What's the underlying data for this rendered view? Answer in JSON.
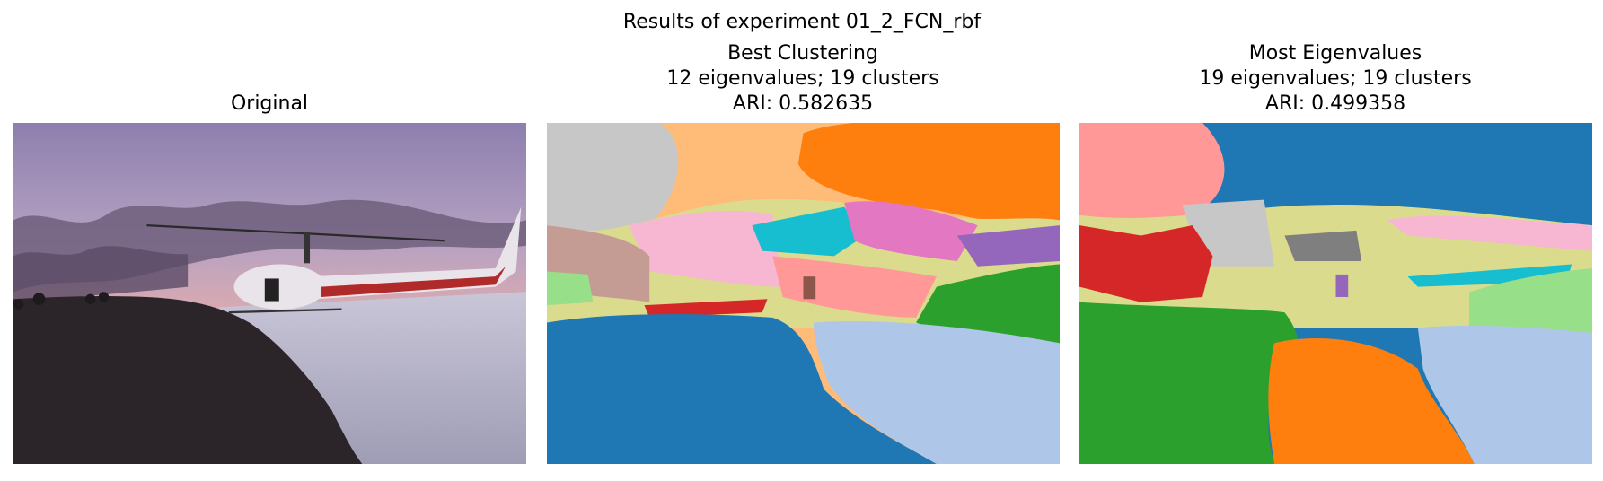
{
  "title": "Results of experiment 01_2_FCN_rbf",
  "panels": [
    {
      "title_lines": [
        "Original"
      ]
    },
    {
      "title_lines": [
        "Best Clustering",
        "12 eigenvalues; 19 clusters",
        "ARI: 0.582635"
      ]
    },
    {
      "title_lines": [
        "Most Eigenvalues",
        "19 eigenvalues; 19 clusters",
        "ARI: 0.499358"
      ]
    }
  ]
}
